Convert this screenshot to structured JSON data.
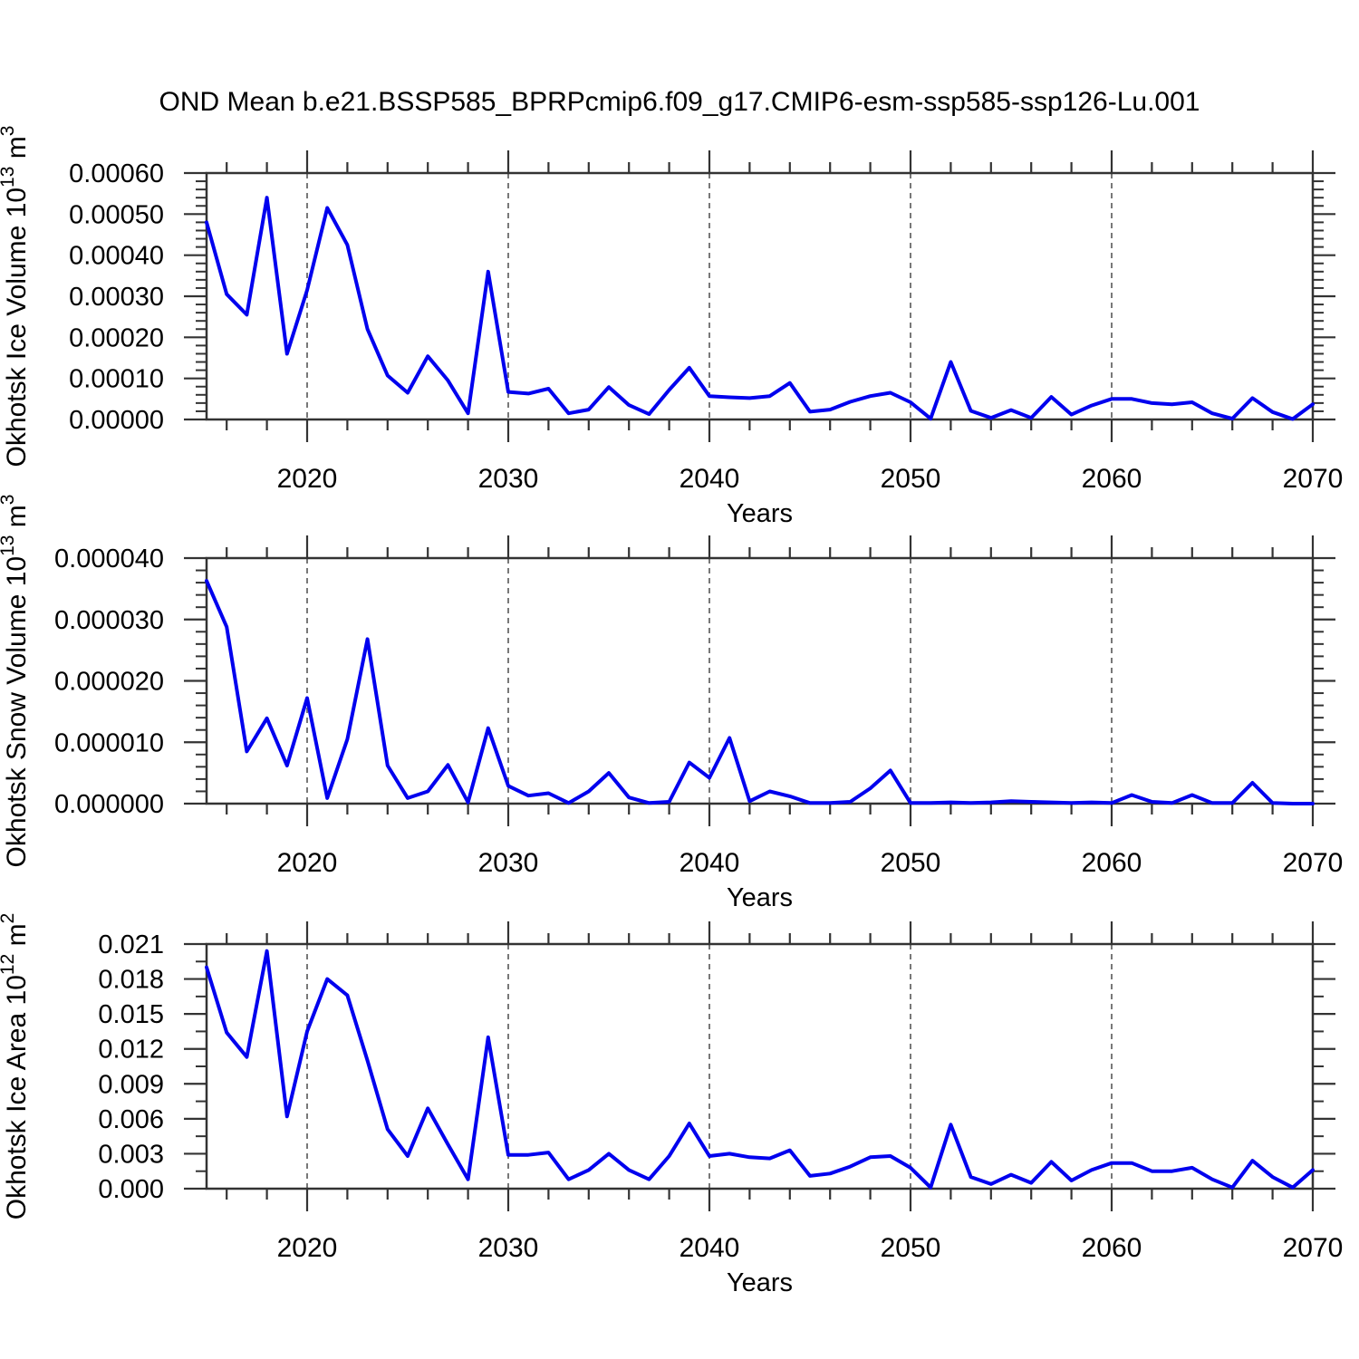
{
  "title": "OND Mean b.e21.BSSP585_BPRPcmip6.f09_g17.CMIP6-esm-ssp585-ssp126-Lu.001",
  "colors": {
    "line": "#0000ee",
    "frame": "#333333",
    "grid": "#787878",
    "text": "#000000",
    "background": "#ffffff"
  },
  "x_axis": {
    "label": "Years",
    "range": [
      2015,
      2070
    ],
    "major_ticks": [
      2020,
      2030,
      2040,
      2050,
      2060,
      2070
    ],
    "minor_tick_step_years": 2,
    "grid_lines_at": [
      2020,
      2030,
      2040,
      2050,
      2060
    ],
    "grid_style": "dashed-vertical"
  },
  "years": [
    2015,
    2016,
    2017,
    2018,
    2019,
    2020,
    2021,
    2022,
    2023,
    2024,
    2025,
    2026,
    2027,
    2028,
    2029,
    2030,
    2031,
    2032,
    2033,
    2034,
    2035,
    2036,
    2037,
    2038,
    2039,
    2040,
    2041,
    2042,
    2043,
    2044,
    2045,
    2046,
    2047,
    2048,
    2049,
    2050,
    2051,
    2052,
    2053,
    2054,
    2055,
    2056,
    2057,
    2058,
    2059,
    2060,
    2061,
    2062,
    2063,
    2064,
    2065,
    2066,
    2067,
    2068,
    2069,
    2070
  ],
  "chart_data": [
    {
      "type": "line",
      "name": "okhotsk-ice-volume",
      "ylabel": {
        "text": "Okhotsk Ice Volume 10",
        "exp": "13",
        "unit": " m",
        "unit_exp": "3",
        "plain": "Okhotsk Ice Volume 10^13 m^3"
      },
      "ylim": [
        0,
        0.0006
      ],
      "ytick_step": 0.0001,
      "yminor_step": 2e-05,
      "ytick_labels": [
        "0.00000",
        "0.00010",
        "0.00020",
        "0.00030",
        "0.00040",
        "0.00050",
        "0.00060"
      ],
      "values": [
        0.00048,
        0.000305,
        0.000255,
        0.00054,
        0.00016,
        0.000315,
        0.000515,
        0.000425,
        0.00022,
        0.000107,
        6.5e-05,
        0.000154,
        9.5e-05,
        1.5e-05,
        0.00036,
        6.7e-05,
        6.3e-05,
        7.5e-05,
        1.5e-05,
        2.4e-05,
        7.9e-05,
        3.5e-05,
        1.3e-05,
        7.2e-05,
        0.000126,
        5.7e-05,
        5.4e-05,
        5.2e-05,
        5.7e-05,
        8.9e-05,
        1.9e-05,
        2.4e-05,
        4.3e-05,
        5.7e-05,
        6.5e-05,
        4.2e-05,
        2e-06,
        0.00014,
        2.1e-05,
        4e-06,
        2.3e-05,
        4e-06,
        5.5e-05,
        1.2e-05,
        3.4e-05,
        5e-05,
        5e-05,
        4e-05,
        3.7e-05,
        4.2e-05,
        1.5e-05,
        2e-06,
        5.2e-05,
        1.8e-05,
        1e-06,
        3.7e-05
      ]
    },
    {
      "type": "line",
      "name": "okhotsk-snow-volume",
      "ylabel": {
        "text": "Okhotsk Snow Volume 10",
        "exp": "13",
        "unit": " m",
        "unit_exp": "3",
        "plain": "Okhotsk Snow Volume 10^13 m^3"
      },
      "ylim": [
        0,
        4e-05
      ],
      "ytick_step": 1e-05,
      "yminor_step": 2e-06,
      "ytick_labels": [
        "0.000000",
        "0.000010",
        "0.000020",
        "0.000030",
        "0.000040"
      ],
      "values": [
        3.63e-05,
        2.88e-05,
        8.5e-06,
        1.39e-05,
        6.2e-06,
        1.72e-05,
        9e-07,
        1.05e-05,
        2.68e-05,
        6.2e-06,
        9e-07,
        2e-06,
        6.3e-06,
        2e-07,
        1.23e-05,
        2.9e-06,
        1.3e-06,
        1.7e-06,
        1e-07,
        2e-06,
        5e-06,
        1e-06,
        1e-07,
        3e-07,
        6.7e-06,
        4.2e-06,
        1.07e-05,
        4e-07,
        2e-06,
        1.2e-06,
        1e-07,
        1e-07,
        3e-07,
        2.5e-06,
        5.4e-06,
        1e-07,
        1e-07,
        2e-07,
        1e-07,
        2e-07,
        4e-07,
        3e-07,
        2e-07,
        1e-07,
        2e-07,
        1e-07,
        1.4e-06,
        3e-07,
        1e-07,
        1.4e-06,
        1e-07,
        1e-07,
        3.4e-06,
        1e-07,
        0.0,
        0.0
      ]
    },
    {
      "type": "line",
      "name": "okhotsk-ice-area",
      "ylabel": {
        "text": "Okhotsk Ice Area 10",
        "exp": "12",
        "unit": " m",
        "unit_exp": "2",
        "plain": "Okhotsk Ice Area 10^12 m^2"
      },
      "ylim": [
        0,
        0.021
      ],
      "ytick_step": 0.003,
      "yminor_step": 0.0015,
      "ytick_labels": [
        "0.000",
        "0.003",
        "0.006",
        "0.009",
        "0.012",
        "0.015",
        "0.018",
        "0.021"
      ],
      "values": [
        0.019,
        0.0134,
        0.0113,
        0.0204,
        0.0062,
        0.0135,
        0.018,
        0.0166,
        0.011,
        0.0051,
        0.0028,
        0.0069,
        0.0038,
        0.0008,
        0.013,
        0.0029,
        0.0029,
        0.0031,
        0.0008,
        0.0016,
        0.003,
        0.0016,
        0.0008,
        0.0028,
        0.0056,
        0.0028,
        0.003,
        0.0027,
        0.0026,
        0.0033,
        0.0011,
        0.0013,
        0.0019,
        0.0027,
        0.0028,
        0.0018,
        0.0001,
        0.0055,
        0.001,
        0.0004,
        0.0012,
        0.0005,
        0.0023,
        0.0007,
        0.0016,
        0.0022,
        0.0022,
        0.0015,
        0.0015,
        0.0018,
        0.0008,
        0.0001,
        0.0024,
        0.001,
        0.0001,
        0.0016
      ]
    }
  ]
}
